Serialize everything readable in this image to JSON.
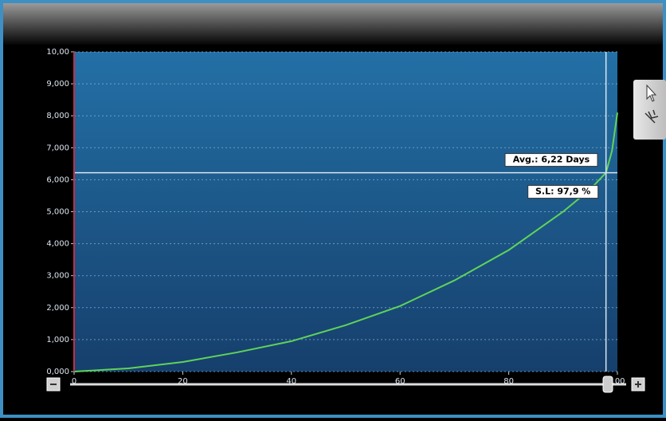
{
  "chart_data": {
    "type": "line",
    "x": [
      0,
      10,
      20,
      30,
      40,
      50,
      60,
      70,
      80,
      90,
      95,
      97.9,
      99,
      100
    ],
    "series": [
      {
        "color": "#5fd35a",
        "values": [
          0,
          0.1,
          0.3,
          0.6,
          0.95,
          1.45,
          2.05,
          2.85,
          3.8,
          5.0,
          5.7,
          6.22,
          6.9,
          8.1
        ]
      }
    ],
    "xlim": [
      0,
      100
    ],
    "xticks": [
      0,
      20,
      40,
      60,
      80,
      100
    ],
    "ylim": [
      0,
      10
    ],
    "yticks": [
      {
        "value": 0,
        "label": "0,000"
      },
      {
        "value": 1,
        "label": "1,000"
      },
      {
        "value": 2,
        "label": "2,000"
      },
      {
        "value": 3,
        "label": "3,000"
      },
      {
        "value": 4,
        "label": "4,000"
      },
      {
        "value": 5,
        "label": "5,000"
      },
      {
        "value": 6,
        "label": "6,000"
      },
      {
        "value": 7,
        "label": "7,000"
      },
      {
        "value": 8,
        "label": "8,000"
      },
      {
        "value": 9,
        "label": "9,000"
      },
      {
        "value": 10,
        "label": "10,00"
      }
    ],
    "grid": true,
    "hline": {
      "value": 6.22,
      "label": "Avg.: 6,22 Days"
    },
    "vline": {
      "value": 97.9,
      "label": "S.L: 97,9 %"
    }
  }
}
